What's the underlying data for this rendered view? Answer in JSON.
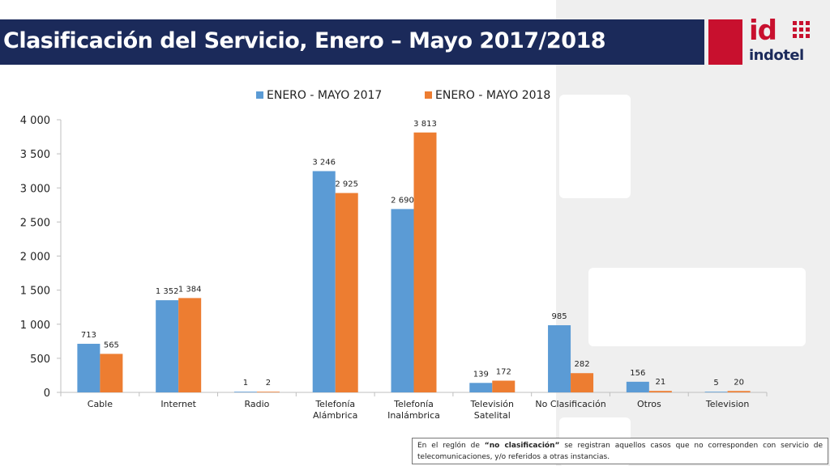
{
  "header": {
    "title": "Clasificación del Servicio, Enero – Mayo 2017/2018"
  },
  "logo": {
    "brand_id": "id",
    "brand_name": "indotel",
    "colors": {
      "red": "#c8102e",
      "navy": "#1b2a5a"
    }
  },
  "colors": {
    "series_2017": "#5b9bd5",
    "series_2018": "#ed7d31",
    "title_bar": "#1b2a5a"
  },
  "chart_data": {
    "type": "bar",
    "categories": [
      "Cable",
      "Internet",
      "Radio",
      "Telefonía Alámbrica",
      "Telefonía Inalámbrica",
      "Televisión Satelital",
      "No Clasificación",
      "Otros",
      "Television"
    ],
    "category_lines": [
      [
        "Cable"
      ],
      [
        "Internet"
      ],
      [
        "Radio"
      ],
      [
        "Telefonía",
        "Alámbrica"
      ],
      [
        "Telefonía",
        "Inalámbrica"
      ],
      [
        "Televisión",
        "Satelital"
      ],
      [
        "No Clasificación"
      ],
      [
        "Otros"
      ],
      [
        "Television"
      ]
    ],
    "series": [
      {
        "name": "ENERO - MAYO 2017",
        "values": [
          713,
          1352,
          1,
          3246,
          2690,
          139,
          985,
          156,
          5
        ],
        "labels": [
          "713",
          "1 352",
          "1",
          "3 246",
          "2 690",
          "139",
          "985",
          "156",
          "5"
        ]
      },
      {
        "name": "ENERO - MAYO 2018",
        "values": [
          565,
          1384,
          2,
          2925,
          3813,
          172,
          282,
          21,
          20
        ],
        "labels": [
          "565",
          "1 384",
          "2",
          "2 925",
          "3 813",
          "172",
          "282",
          "21",
          "20"
        ]
      }
    ],
    "yticks": [
      "0",
      "500",
      "1 000",
      "1 500",
      "2 000",
      "2 500",
      "3 000",
      "3 500",
      "4 000"
    ],
    "ylim": [
      0,
      4000
    ],
    "legend_position": "top",
    "grid": false
  },
  "note": {
    "prefix": "En el reglón de ",
    "bold": "“no clasificación”",
    "suffix": " se registran aquellos casos que no corresponden con servicio de telecomunicaciones, y/o referidos a otras instancias."
  }
}
